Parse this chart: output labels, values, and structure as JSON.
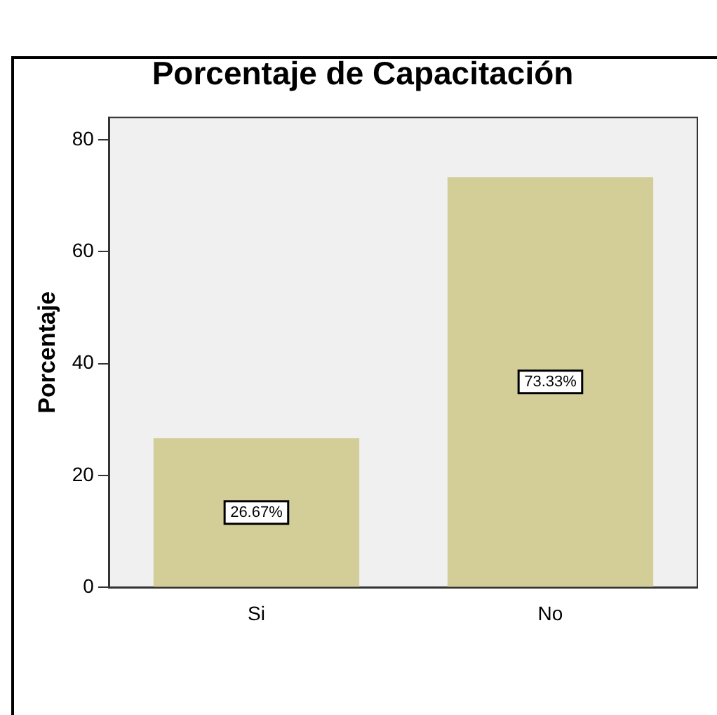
{
  "chart_data": {
    "type": "bar",
    "title": "Porcentaje de Capacitación",
    "ylabel": "Porcentaje",
    "categories": [
      "Si",
      "No"
    ],
    "values": [
      26.67,
      73.33
    ],
    "value_labels": [
      "26.67%",
      "73.33%"
    ],
    "color": "#d3ce97",
    "ylim": [
      0,
      84
    ],
    "yticks": [
      0,
      20,
      40,
      60,
      80
    ],
    "grid": false,
    "legend": false
  }
}
